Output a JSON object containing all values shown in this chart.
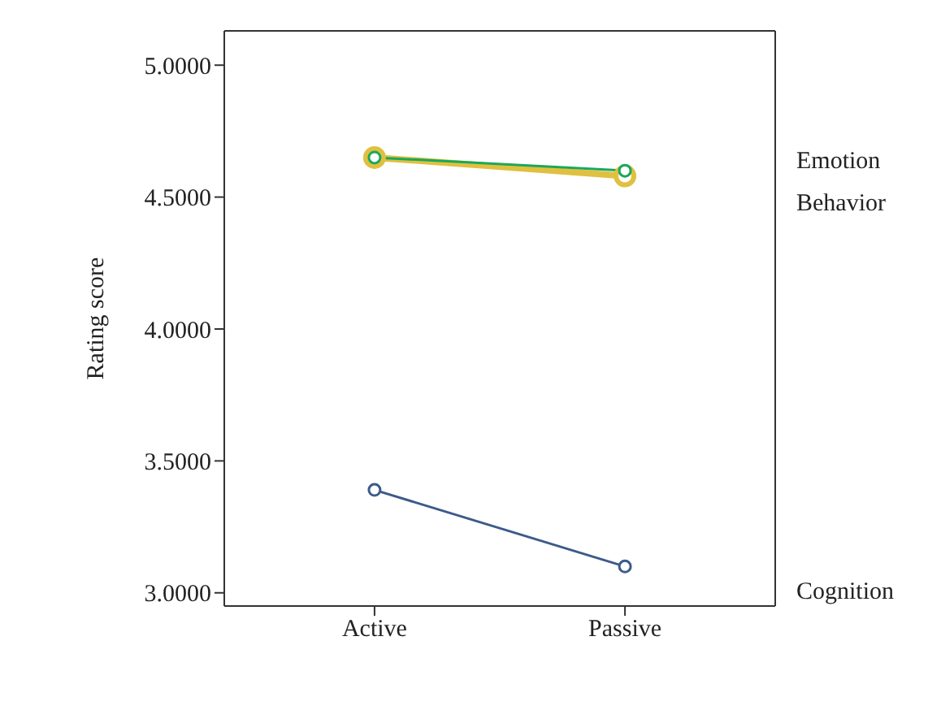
{
  "chart_data": {
    "type": "line",
    "ylabel": "Rating score",
    "categories": [
      "Active",
      "Passive"
    ],
    "series": [
      {
        "name": "Emotion",
        "color": "#1aa85a",
        "values": [
          4.65,
          4.6
        ]
      },
      {
        "name": "Behavior",
        "color": "#e0c040",
        "values": [
          4.65,
          4.58
        ]
      },
      {
        "name": "Cognition",
        "color": "#3d5a8a",
        "values": [
          3.39,
          3.1
        ]
      }
    ],
    "ylim": [
      2.95,
      5.13
    ],
    "yticks": [
      {
        "value": 3,
        "label": "3.0000"
      },
      {
        "value": 3.5,
        "label": "3.5000"
      },
      {
        "value": 4,
        "label": "4.0000"
      },
      {
        "value": 4.5,
        "label": "4.5000"
      },
      {
        "value": 5,
        "label": "5.0000"
      }
    ],
    "marker": "circle",
    "line_style": "solid",
    "grid": false,
    "legend": false
  }
}
